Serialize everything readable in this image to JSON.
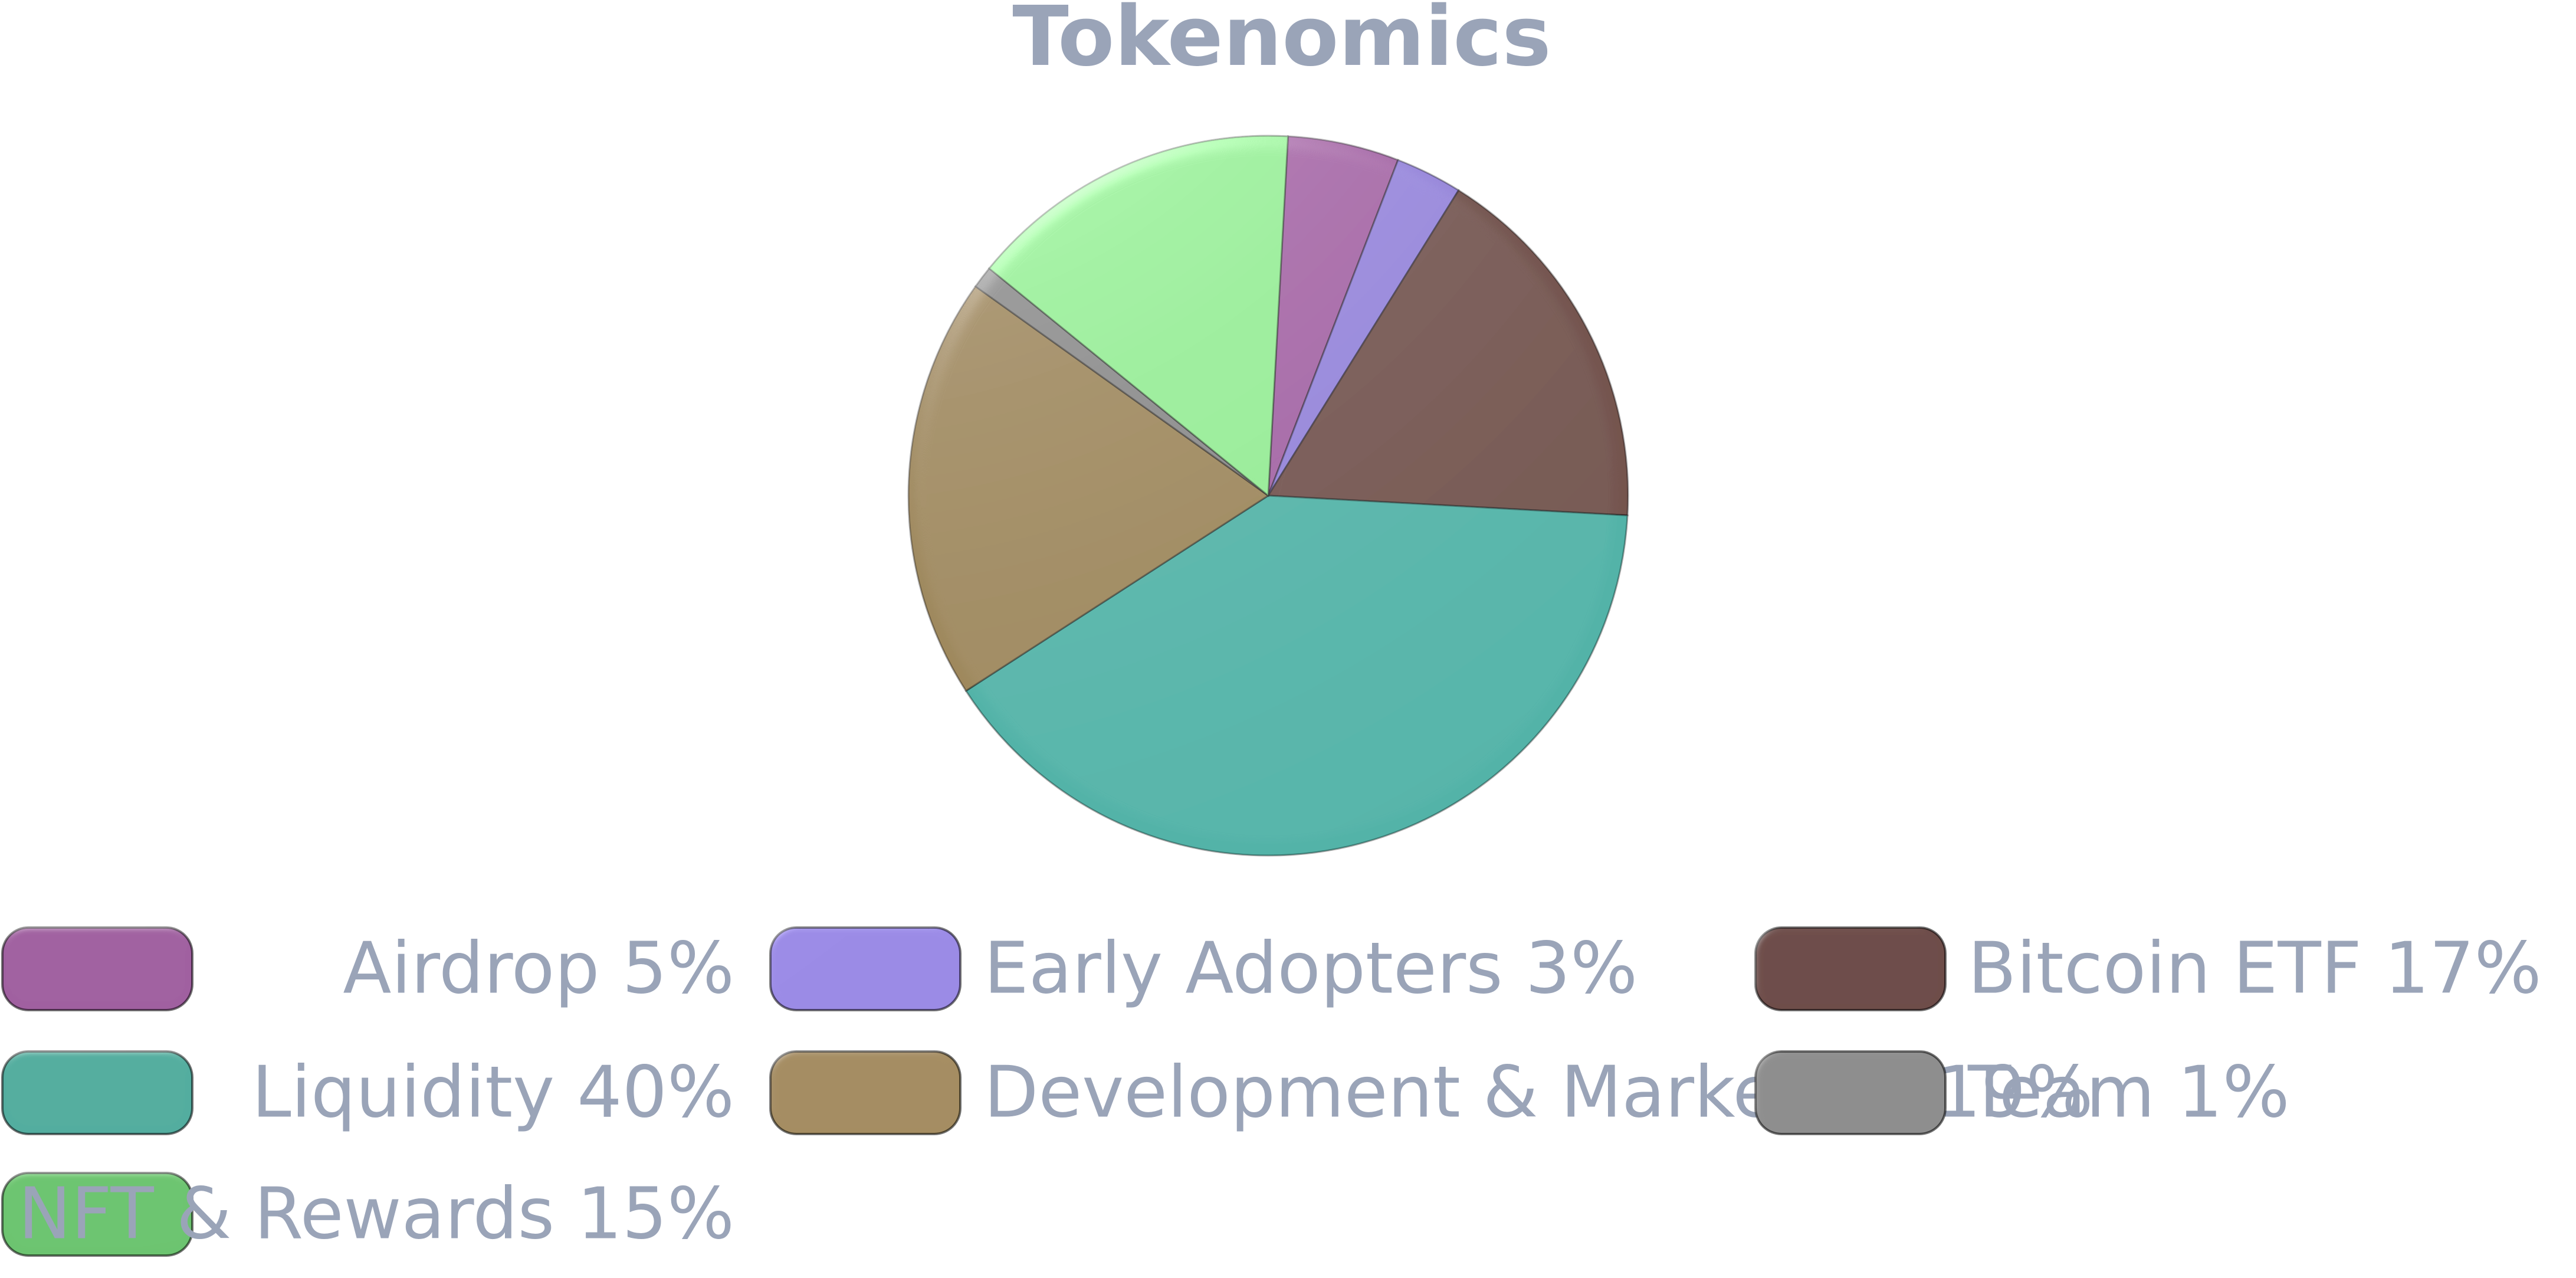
{
  "chart_data": {
    "type": "pie",
    "title": "Tokenomics",
    "slices": [
      {
        "label": "Airdrop 5%",
        "value": 5,
        "color": "#a465a5"
      },
      {
        "label": "Early Adopters 3%",
        "value": 3,
        "color": "#9585d8"
      },
      {
        "label": "Bitcoin ETF 17%",
        "value": 17,
        "color": "#74544e"
      },
      {
        "label": "Liquidity 40%",
        "value": 40,
        "color": "#52b3a8"
      },
      {
        "label": "Development & Marketing 19%",
        "value": 19,
        "color": "#9e885c"
      },
      {
        "label": "Team 1%",
        "value": 1,
        "color": "#8b8b8b"
      },
      {
        "label": "NFT & Rewards 15%",
        "value": 15,
        "color": "#96e996"
      }
    ],
    "legend_colors": [
      "#a060a0",
      "#9b8be6",
      "#6e4d4a",
      "#52ad9f",
      "#a58d62",
      "#8e8e8e",
      "#6cc46f"
    ],
    "legend_placement": "bottom"
  }
}
